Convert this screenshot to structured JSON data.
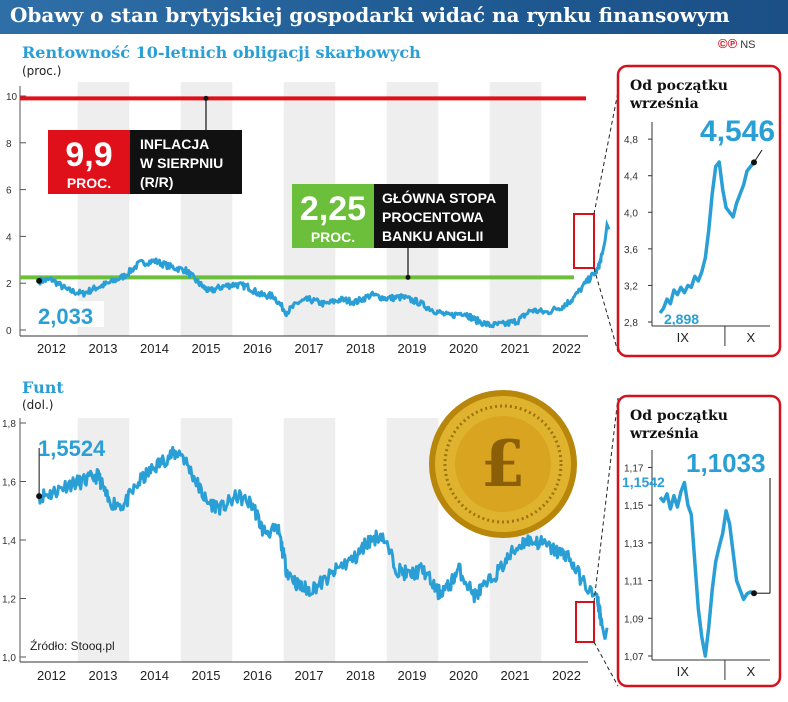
{
  "title": "Obawy o stan brytyjskiej gospodarki widać na rynku finansowym",
  "brand": {
    "marks": "©℗",
    "code": "NS"
  },
  "source": "Źródło: Stooq.pl",
  "colors": {
    "series": "#2a9fd6",
    "inflation_line": "#e0101a",
    "base_rate_line": "#6bbf3a",
    "highlight_box": "#d6111b",
    "band": "#eeeeee"
  },
  "icons": {
    "coin": "pound-coin-icon"
  },
  "chart_data": [
    {
      "type": "line",
      "title": "Rentowność 10-letnich obligacji skarbowych",
      "unit": "(proc.)",
      "x_tick_labels": [
        "2012",
        "2013",
        "2014",
        "2015",
        "2016",
        "2017",
        "2018",
        "2019",
        "2020",
        "2021",
        "2022"
      ],
      "y_ticks": [
        0,
        2,
        4,
        6,
        8,
        10
      ],
      "ylim": [
        0,
        10
      ],
      "x": [
        2011.75,
        2012.0,
        2012.3,
        2012.6,
        2012.85,
        2013.1,
        2013.4,
        2013.7,
        2014.0,
        2014.3,
        2014.6,
        2014.85,
        2015.05,
        2015.3,
        2015.55,
        2015.8,
        2016.05,
        2016.3,
        2016.55,
        2016.8,
        2017.0,
        2017.3,
        2017.6,
        2017.9,
        2018.2,
        2018.5,
        2018.8,
        2019.1,
        2019.4,
        2019.7,
        2020.0,
        2020.2,
        2020.5,
        2020.8,
        2021.05,
        2021.3,
        2021.6,
        2021.9,
        2022.1,
        2022.4,
        2022.6,
        2022.68
      ],
      "values": [
        2.1,
        2.15,
        1.7,
        1.55,
        1.8,
        2.0,
        2.3,
        2.85,
        2.95,
        2.7,
        2.55,
        2.0,
        1.65,
        1.85,
        1.95,
        1.85,
        1.5,
        1.45,
        0.75,
        1.2,
        1.3,
        1.1,
        1.3,
        1.2,
        1.5,
        1.35,
        1.4,
        1.2,
        0.85,
        0.6,
        0.75,
        0.45,
        0.2,
        0.25,
        0.4,
        0.85,
        0.75,
        1.0,
        1.3,
        2.1,
        2.6,
        3.2
      ],
      "labels": {
        "start_value": "2,033"
      },
      "reference_lines": [
        {
          "name": "inflation",
          "value": 9.9,
          "value_label": "9,9",
          "unit_label": "PROC.",
          "description": "INFLACJA W SIERPNIU (R/R)",
          "description_lines": [
            "INFLACJA",
            "W SIERPNIU",
            "(R/R)"
          ]
        },
        {
          "name": "base_rate",
          "value": 2.25,
          "value_label": "2,25",
          "unit_label": "PROC.",
          "description": "GŁÓWNA STOPA PROCENTOWA BANKU ANGLII",
          "description_lines": [
            "GŁÓWNA STOPA",
            "PROCENTOWA",
            "BANKU ANGLII"
          ]
        }
      ],
      "inset": {
        "title": "Od początku września",
        "title_lines": [
          "Od początku",
          "września"
        ],
        "x_tick_labels": [
          "IX",
          "X"
        ],
        "y_ticks": [
          "2,8",
          "3,2",
          "3,6",
          "4,0",
          "4,4",
          "4,8"
        ],
        "ylim": [
          2.8,
          4.9
        ],
        "values": [
          2.898,
          2.95,
          3.05,
          3.0,
          3.15,
          3.1,
          3.18,
          3.12,
          3.2,
          3.18,
          3.3,
          3.25,
          3.35,
          3.5,
          3.8,
          4.2,
          4.5,
          4.55,
          4.25,
          4.05,
          4.0,
          3.95,
          4.1,
          4.2,
          4.3,
          4.45,
          4.5,
          4.546
        ],
        "start_label": "2,898",
        "end_label": "4,546"
      }
    },
    {
      "type": "line",
      "title": "Funt",
      "unit": "(dol.)",
      "x_tick_labels": [
        "2012",
        "2013",
        "2014",
        "2015",
        "2016",
        "2017",
        "2018",
        "2019",
        "2020",
        "2021",
        "2022"
      ],
      "y_ticks": [
        "1,0",
        "1,2",
        "1,4",
        "1,6",
        "1,8"
      ],
      "ylim": [
        1.0,
        1.8
      ],
      "x": [
        2011.75,
        2012.0,
        2012.3,
        2012.6,
        2012.9,
        2013.1,
        2013.4,
        2013.7,
        2014.0,
        2014.3,
        2014.5,
        2014.8,
        2015.0,
        2015.3,
        2015.6,
        2015.9,
        2016.1,
        2016.4,
        2016.55,
        2016.8,
        2017.0,
        2017.3,
        2017.6,
        2017.9,
        2018.1,
        2018.4,
        2018.7,
        2018.95,
        2019.2,
        2019.5,
        2019.7,
        2019.9,
        2020.2,
        2020.4,
        2020.7,
        2020.95,
        2021.2,
        2021.5,
        2021.8,
        2022.0,
        2022.3,
        2022.6,
        2022.68
      ],
      "values": [
        1.55,
        1.56,
        1.59,
        1.6,
        1.62,
        1.53,
        1.52,
        1.6,
        1.65,
        1.69,
        1.7,
        1.6,
        1.53,
        1.51,
        1.55,
        1.52,
        1.43,
        1.43,
        1.3,
        1.24,
        1.23,
        1.26,
        1.31,
        1.34,
        1.39,
        1.42,
        1.3,
        1.28,
        1.3,
        1.22,
        1.24,
        1.3,
        1.21,
        1.24,
        1.3,
        1.36,
        1.4,
        1.39,
        1.36,
        1.35,
        1.26,
        1.19,
        1.11
      ],
      "labels": {
        "start_value": "1,5524"
      },
      "inset": {
        "title": "Od początku września",
        "title_lines": [
          "Od początku",
          "września"
        ],
        "x_tick_labels": [
          "IX",
          "X"
        ],
        "y_ticks": [
          "1,07",
          "1,09",
          "1,11",
          "1,13",
          "1,15",
          "1,17"
        ],
        "ylim": [
          1.07,
          1.175
        ],
        "values": [
          1.1542,
          1.152,
          1.156,
          1.148,
          1.155,
          1.149,
          1.157,
          1.162,
          1.15,
          1.145,
          1.12,
          1.095,
          1.08,
          1.07,
          1.085,
          1.105,
          1.12,
          1.128,
          1.135,
          1.147,
          1.14,
          1.125,
          1.11,
          1.105,
          1.1,
          1.103,
          1.104,
          1.1033
        ],
        "start_label": "1,1542",
        "end_label": "1,1033"
      }
    }
  ]
}
